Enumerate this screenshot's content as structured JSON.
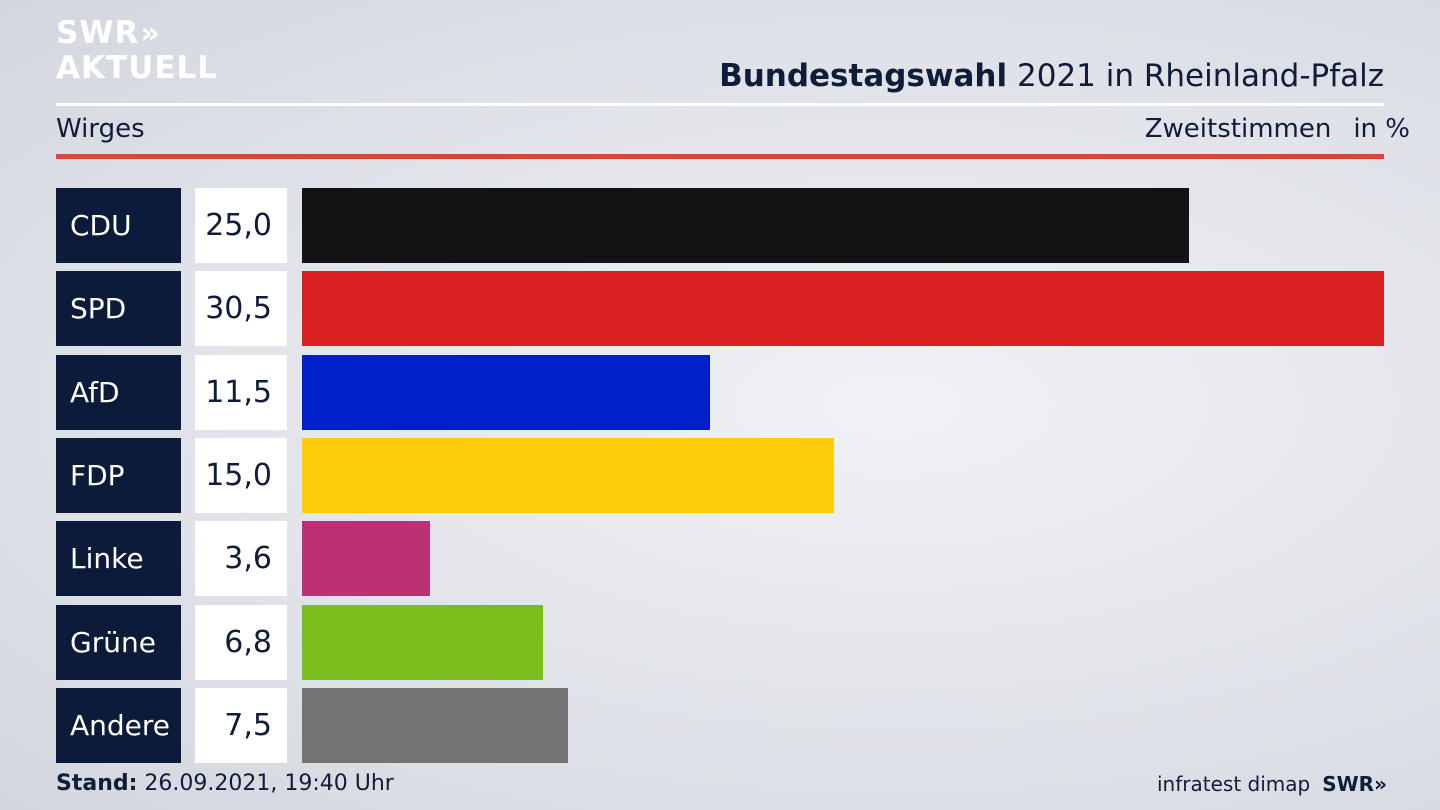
{
  "logo": {
    "line1": "SWR",
    "line1_chevrons": "»",
    "line2": "AKTUELL"
  },
  "header": {
    "title_bold": "Bundestagswahl",
    "title_rest": "2021 in Rheinland-Pfalz",
    "district": "Wirges",
    "measure": "Zweitstimmen",
    "unit": "in %"
  },
  "chart_data": {
    "type": "bar",
    "orientation": "horizontal",
    "categories": [
      "CDU",
      "SPD",
      "AfD",
      "FDP",
      "Linke",
      "Grüne",
      "Andere"
    ],
    "values": [
      25.0,
      30.5,
      11.5,
      15.0,
      3.6,
      6.8,
      7.5
    ],
    "value_labels": [
      "25,0",
      "30,5",
      "11,5",
      "15,0",
      "3,6",
      "6,8",
      "7,5"
    ],
    "colors": [
      "#131313",
      "#d92121",
      "#0021c9",
      "#ffcc0a",
      "#be3075",
      "#7abe1e",
      "#737373"
    ],
    "xlim": [
      0,
      30.5
    ],
    "grid": false,
    "legend": "none"
  },
  "footer": {
    "stand_label": "Stand:",
    "stand_value": "26.09.2021, 19:40 Uhr",
    "source": "infratest dimap",
    "brand": "SWR",
    "brand_chevrons": "»"
  }
}
